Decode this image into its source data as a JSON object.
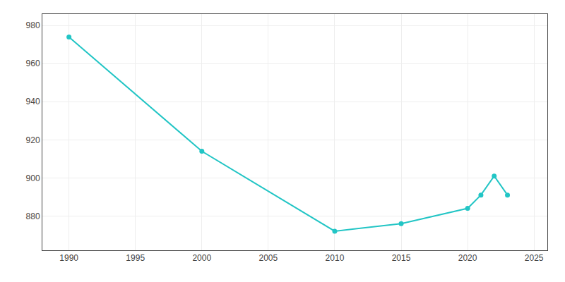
{
  "chart_data": {
    "type": "line",
    "x": [
      1990,
      2000,
      2010,
      2015,
      2020,
      2021,
      2022,
      2023
    ],
    "values": [
      974,
      914,
      872,
      876,
      884,
      891,
      901,
      891
    ],
    "color": "#22c5c5",
    "marker": "circle",
    "xlim": [
      1988,
      2026
    ],
    "ylim": [
      862,
      986
    ],
    "xticks": [
      1990,
      1995,
      2000,
      2005,
      2010,
      2015,
      2020,
      2025
    ],
    "yticks": [
      880,
      900,
      920,
      940,
      960,
      980
    ],
    "grid": true
  }
}
